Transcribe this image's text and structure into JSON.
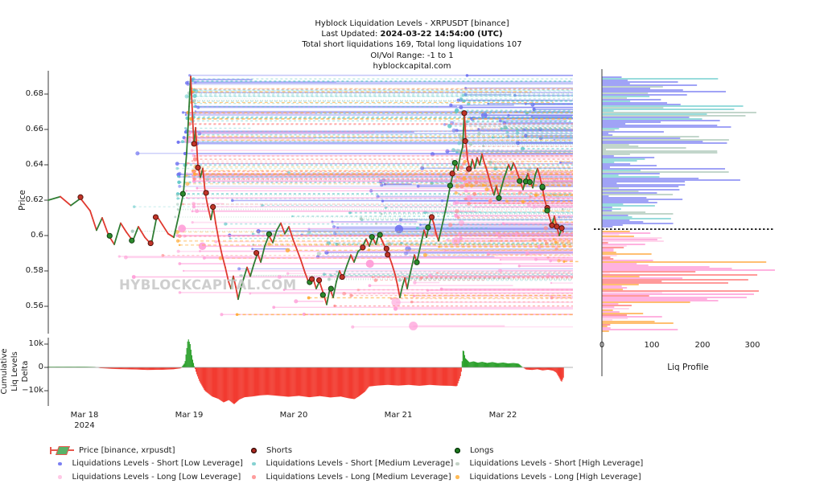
{
  "header": {
    "line1": "Hyblock Liquidation Levels - XRPUSDT [binance]",
    "line2_prefix": "Last Updated: ",
    "line2_bold": "2024-03-22 14:54:00 (UTC)",
    "line3": "Total short liquidations 169, Total long liquidations 107",
    "line4": "OI/Vol Range: -1 to 1",
    "line5": "hyblockcapital.com"
  },
  "watermark": "HYBLOCKCAPITAL.COM",
  "axes": {
    "price": {
      "title": "Price",
      "ticks": [
        "0.68",
        "0.66",
        "0.64",
        "0.62",
        "0.6",
        "0.58",
        "0.56"
      ]
    },
    "delta": {
      "title_lines": [
        "Cumulative",
        "Liq Levels",
        "Delta"
      ],
      "ticks": [
        "10k",
        "0",
        "−10k"
      ]
    },
    "dates": [
      "Mar 18",
      "Mar 19",
      "Mar 20",
      "Mar 21",
      "Mar 22"
    ],
    "year": "2024",
    "profile": {
      "title": "Liq Profile",
      "ticks": [
        "0",
        "100",
        "200",
        "300"
      ]
    }
  },
  "legend": {
    "items": [
      {
        "label": "Price [binance, xrpusdt]",
        "type": "price-icon"
      },
      {
        "label": "Shorts",
        "color": "#b02a22",
        "ring": "#2b0a06",
        "type": "big"
      },
      {
        "label": "Longs",
        "color": "#1e7a1e",
        "ring": "#07320a",
        "type": "big"
      },
      {
        "label": "Liquidations Levels - Short [Low Leverage]",
        "color": "#7b7ff2",
        "type": "small"
      },
      {
        "label": "Liquidations Levels - Short [Medium Leverage]",
        "color": "#86d2d2",
        "type": "small"
      },
      {
        "label": "Liquidations Levels - Short [High Leverage]",
        "color": "#c3d2c6",
        "type": "small"
      },
      {
        "label": "Liquidations Levels - Long [Low Leverage]",
        "color": "#ffc9e6",
        "type": "small"
      },
      {
        "label": "Liquidations Levels - Long [Medium Leverage]",
        "color": "#ff9d9d",
        "type": "small"
      },
      {
        "label": "Liquidations Levels - Long [High Leverage]",
        "color": "#ffbb55",
        "type": "small"
      }
    ]
  },
  "chart_data": {
    "type": "composite",
    "title": "Hyblock Liquidation Levels - XRPUSDT [binance]",
    "price_axis": {
      "label": "Price",
      "range": [
        0.545,
        0.693
      ],
      "ticks": [
        0.68,
        0.66,
        0.64,
        0.62,
        0.6,
        0.58,
        0.56
      ]
    },
    "time_axis": {
      "unit": "days since 2024-03-18 00:00 UTC",
      "tick_days": [
        0,
        1,
        2,
        3,
        4
      ],
      "tick_labels": [
        "Mar 18",
        "Mar 19",
        "Mar 20",
        "Mar 21",
        "Mar 22"
      ],
      "range_days": [
        -0.35,
        4.6
      ]
    },
    "price_series": {
      "name": "Price [binance, xrpusdt]",
      "up_color": "#2f7d33",
      "down_color": "#e0392f",
      "points": [
        [
          -0.346,
          0.62
        ],
        [
          -0.231,
          0.622
        ],
        [
          -0.131,
          0.617
        ],
        [
          -0.038,
          0.621
        ],
        [
          0.054,
          0.614
        ],
        [
          0.115,
          0.603
        ],
        [
          0.169,
          0.61
        ],
        [
          0.231,
          0.6
        ],
        [
          0.285,
          0.595
        ],
        [
          0.346,
          0.607
        ],
        [
          0.4,
          0.602
        ],
        [
          0.462,
          0.597
        ],
        [
          0.515,
          0.605
        ],
        [
          0.577,
          0.599
        ],
        [
          0.638,
          0.595
        ],
        [
          0.692,
          0.611
        ],
        [
          0.746,
          0.606
        ],
        [
          0.8,
          0.601
        ],
        [
          0.854,
          0.599
        ],
        [
          0.9,
          0.611
        ],
        [
          0.946,
          0.624
        ],
        [
          0.977,
          0.647
        ],
        [
          1.0,
          0.673
        ],
        [
          1.015,
          0.69
        ],
        [
          1.031,
          0.67
        ],
        [
          1.046,
          0.651
        ],
        [
          1.062,
          0.661
        ],
        [
          1.085,
          0.639
        ],
        [
          1.108,
          0.633
        ],
        [
          1.131,
          0.638
        ],
        [
          1.154,
          0.624
        ],
        [
          1.177,
          0.617
        ],
        [
          1.208,
          0.609
        ],
        [
          1.231,
          0.616
        ],
        [
          1.254,
          0.607
        ],
        [
          1.285,
          0.597
        ],
        [
          1.315,
          0.589
        ],
        [
          1.346,
          0.582
        ],
        [
          1.377,
          0.574
        ],
        [
          1.4,
          0.57
        ],
        [
          1.423,
          0.577
        ],
        [
          1.446,
          0.571
        ],
        [
          1.469,
          0.564
        ],
        [
          1.492,
          0.57
        ],
        [
          1.523,
          0.576
        ],
        [
          1.554,
          0.582
        ],
        [
          1.585,
          0.577
        ],
        [
          1.615,
          0.583
        ],
        [
          1.654,
          0.59
        ],
        [
          1.685,
          0.585
        ],
        [
          1.723,
          0.594
        ],
        [
          1.762,
          0.6
        ],
        [
          1.8,
          0.596
        ],
        [
          1.838,
          0.603
        ],
        [
          1.877,
          0.607
        ],
        [
          1.915,
          0.601
        ],
        [
          1.954,
          0.605
        ],
        [
          1.992,
          0.598
        ],
        [
          2.031,
          0.592
        ],
        [
          2.069,
          0.586
        ],
        [
          2.108,
          0.579
        ],
        [
          2.146,
          0.573
        ],
        [
          2.185,
          0.576
        ],
        [
          2.215,
          0.57
        ],
        [
          2.246,
          0.574
        ],
        [
          2.285,
          0.567
        ],
        [
          2.315,
          0.561
        ],
        [
          2.346,
          0.57
        ],
        [
          2.377,
          0.565
        ],
        [
          2.408,
          0.574
        ],
        [
          2.438,
          0.58
        ],
        [
          2.469,
          0.576
        ],
        [
          2.508,
          0.583
        ],
        [
          2.546,
          0.589
        ],
        [
          2.577,
          0.585
        ],
        [
          2.615,
          0.591
        ],
        [
          2.654,
          0.593
        ],
        [
          2.692,
          0.598
        ],
        [
          2.723,
          0.594
        ],
        [
          2.754,
          0.599
        ],
        [
          2.785,
          0.595
        ],
        [
          2.815,
          0.601
        ],
        [
          2.846,
          0.597
        ],
        [
          2.877,
          0.593
        ],
        [
          2.908,
          0.589
        ],
        [
          2.938,
          0.584
        ],
        [
          2.969,
          0.578
        ],
        [
          2.992,
          0.572
        ],
        [
          3.015,
          0.565
        ],
        [
          3.038,
          0.571
        ],
        [
          3.062,
          0.576
        ],
        [
          3.085,
          0.57
        ],
        [
          3.108,
          0.577
        ],
        [
          3.131,
          0.583
        ],
        [
          3.154,
          0.589
        ],
        [
          3.177,
          0.585
        ],
        [
          3.2,
          0.591
        ],
        [
          3.223,
          0.597
        ],
        [
          3.246,
          0.603
        ],
        [
          3.269,
          0.599
        ],
        [
          3.292,
          0.605
        ],
        [
          3.315,
          0.611
        ],
        [
          3.338,
          0.607
        ],
        [
          3.362,
          0.601
        ],
        [
          3.385,
          0.597
        ],
        [
          3.408,
          0.603
        ],
        [
          3.431,
          0.609
        ],
        [
          3.454,
          0.615
        ],
        [
          3.477,
          0.622
        ],
        [
          3.5,
          0.629
        ],
        [
          3.523,
          0.635
        ],
        [
          3.546,
          0.641
        ],
        [
          3.569,
          0.637
        ],
        [
          3.592,
          0.645
        ],
        [
          3.615,
          0.65
        ],
        [
          3.631,
          0.67
        ],
        [
          3.646,
          0.653
        ],
        [
          3.662,
          0.643
        ],
        [
          3.685,
          0.637
        ],
        [
          3.708,
          0.643
        ],
        [
          3.731,
          0.638
        ],
        [
          3.754,
          0.644
        ],
        [
          3.777,
          0.64
        ],
        [
          3.8,
          0.646
        ],
        [
          3.823,
          0.641
        ],
        [
          3.846,
          0.637
        ],
        [
          3.869,
          0.632
        ],
        [
          3.892,
          0.627
        ],
        [
          3.915,
          0.623
        ],
        [
          3.938,
          0.628
        ],
        [
          3.962,
          0.622
        ],
        [
          3.985,
          0.627
        ],
        [
          4.008,
          0.632
        ],
        [
          4.031,
          0.636
        ],
        [
          4.054,
          0.64
        ],
        [
          4.077,
          0.637
        ],
        [
          4.1,
          0.641
        ],
        [
          4.123,
          0.638
        ],
        [
          4.146,
          0.634
        ],
        [
          4.169,
          0.63
        ],
        [
          4.192,
          0.626
        ],
        [
          4.215,
          0.631
        ],
        [
          4.238,
          0.635
        ],
        [
          4.262,
          0.631
        ],
        [
          4.285,
          0.627
        ],
        [
          4.308,
          0.634
        ],
        [
          4.331,
          0.638
        ],
        [
          4.354,
          0.633
        ],
        [
          4.377,
          0.627
        ],
        [
          4.4,
          0.62
        ],
        [
          4.423,
          0.615
        ],
        [
          4.446,
          0.61
        ],
        [
          4.469,
          0.606
        ],
        [
          4.492,
          0.611
        ],
        [
          4.515,
          0.605
        ],
        [
          4.538,
          0.6
        ],
        [
          4.562,
          0.604
        ],
        [
          4.577,
          0.602
        ]
      ]
    },
    "markers": {
      "shorts_total_stat": 169,
      "longs_total_stat": 107,
      "density": 0.3,
      "seed": 77,
      "shorts_color": "#c13428",
      "shorts_ring": "#55140d",
      "longs_color": "#2c8a2c",
      "longs_ring": "#123f12"
    },
    "delta_series": {
      "ylabel": "Cumulative Liq Levels Delta",
      "units": "thousands",
      "pos_color": "#2ca02c",
      "neg_color": "#f23b30",
      "y_range": [
        -16.5,
        13
      ],
      "points": [
        [
          -0.35,
          0.3
        ],
        [
          0.0,
          0.3
        ],
        [
          0.1,
          0.2
        ],
        [
          0.15,
          -0.3
        ],
        [
          0.3,
          -0.7
        ],
        [
          0.5,
          -0.9
        ],
        [
          0.6,
          -1.1
        ],
        [
          0.75,
          -1.0
        ],
        [
          0.85,
          -0.8
        ],
        [
          0.92,
          -0.4
        ],
        [
          0.96,
          2.0
        ],
        [
          0.99,
          12.5
        ],
        [
          1.01,
          10.0
        ],
        [
          1.03,
          4.0
        ],
        [
          1.05,
          0.5
        ],
        [
          1.07,
          -2.5
        ],
        [
          1.1,
          -6.0
        ],
        [
          1.15,
          -10.0
        ],
        [
          1.22,
          -12.5
        ],
        [
          1.28,
          -13.5
        ],
        [
          1.33,
          -15.0
        ],
        [
          1.38,
          -14.0
        ],
        [
          1.43,
          -15.8
        ],
        [
          1.48,
          -13.8
        ],
        [
          1.53,
          -12.8
        ],
        [
          1.6,
          -12.5
        ],
        [
          1.68,
          -12.0
        ],
        [
          1.75,
          -11.8
        ],
        [
          1.85,
          -12.2
        ],
        [
          1.95,
          -12.6
        ],
        [
          2.05,
          -12.2
        ],
        [
          2.15,
          -12.8
        ],
        [
          2.25,
          -12.3
        ],
        [
          2.35,
          -12.9
        ],
        [
          2.45,
          -12.5
        ],
        [
          2.52,
          -13.2
        ],
        [
          2.58,
          -13.6
        ],
        [
          2.62,
          -12.5
        ],
        [
          2.68,
          -10.5
        ],
        [
          2.72,
          -8.2
        ],
        [
          2.8,
          -7.8
        ],
        [
          2.9,
          -7.5
        ],
        [
          3.0,
          -7.8
        ],
        [
          3.1,
          -7.5
        ],
        [
          3.2,
          -7.9
        ],
        [
          3.3,
          -7.5
        ],
        [
          3.4,
          -7.8
        ],
        [
          3.5,
          -7.9
        ],
        [
          3.56,
          -8.1
        ],
        [
          3.6,
          -3.0
        ],
        [
          3.62,
          8.3
        ],
        [
          3.64,
          4.0
        ],
        [
          3.68,
          2.2
        ],
        [
          3.72,
          2.6
        ],
        [
          3.76,
          2.0
        ],
        [
          3.8,
          2.4
        ],
        [
          3.85,
          1.9
        ],
        [
          3.9,
          2.3
        ],
        [
          3.95,
          1.8
        ],
        [
          4.0,
          2.1
        ],
        [
          4.05,
          1.7
        ],
        [
          4.1,
          1.9
        ],
        [
          4.15,
          1.6
        ],
        [
          4.18,
          0.4
        ],
        [
          4.22,
          -0.9
        ],
        [
          4.28,
          -1.1
        ],
        [
          4.33,
          -0.8
        ],
        [
          4.38,
          -1.3
        ],
        [
          4.43,
          -1.0
        ],
        [
          4.48,
          -1.4
        ],
        [
          4.51,
          -2.2
        ],
        [
          4.54,
          -4.5
        ],
        [
          4.56,
          -6.3
        ],
        [
          4.58,
          -4.2
        ]
      ]
    },
    "liq_levels": {
      "note": "horizontal liquidation level lines spawned from price; estimated generative model",
      "seed": 42,
      "spawn_bias": {
        "primary_spike": 0.3,
        "secondary_spike": 0.12,
        "late_skew": 0.6
      },
      "persist_fraction": 0.82,
      "groups": [
        {
          "name": "short-low",
          "color": "#6a6ff0",
          "count": 105,
          "off_min": 0.016,
          "off_max": 0.078,
          "dash": "",
          "big_dots": true
        },
        {
          "name": "short-medium",
          "color": "#5fc8c8",
          "count": 78,
          "off_min": 0.007,
          "off_max": 0.055,
          "dash": "3 3",
          "big_dots": false
        },
        {
          "name": "short-high",
          "color": "#a8cbbd",
          "count": 48,
          "off_min": 0.003,
          "off_max": 0.028,
          "dash": "1 2",
          "big_dots": false
        },
        {
          "name": "long-low",
          "color": "#ff9ed8",
          "count": 100,
          "off_min": -0.075,
          "off_max": -0.016,
          "dash": "",
          "big_dots": true
        },
        {
          "name": "long-medium",
          "color": "#ff8f8f",
          "count": 62,
          "off_min": -0.05,
          "off_max": -0.007,
          "dash": "3 3",
          "big_dots": false
        },
        {
          "name": "long-high",
          "color": "#ffaa33",
          "count": 50,
          "off_min": -0.03,
          "off_max": -0.003,
          "dash": "4 3",
          "big_dots": false
        }
      ]
    },
    "liq_profile": {
      "xlabel": "Liq Profile",
      "x_ticks": [
        0,
        100,
        200,
        300
      ],
      "x_range": [
        0,
        340
      ],
      "current_price": 0.6036,
      "current_price_line": "black dotted",
      "seed": 9,
      "above_segments": [
        {
          "p0": 0.662,
          "p1": 0.693,
          "var": 300
        },
        {
          "p0": 0.628,
          "p1": 0.662,
          "var": 260
        },
        {
          "p0": 0.604,
          "p1": 0.628,
          "var": 150
        }
      ],
      "below_segments": [
        {
          "p0": 0.596,
          "p1": 0.6035,
          "var": 140
        },
        {
          "p0": 0.586,
          "p1": 0.596,
          "var": 120
        },
        {
          "p0": 0.56,
          "p1": 0.586,
          "var": 330
        },
        {
          "p0": 0.545,
          "p1": 0.56,
          "var": 150
        }
      ],
      "boost_band": {
        "p0": 0.572,
        "p1": 0.584,
        "chance": 0.35,
        "min": 150,
        "extra": 180
      },
      "palette_above": [
        "#6a6ff0",
        "#6a6ff0",
        "#6a6ff0",
        "#5fc8c8",
        "#9fbfae"
      ],
      "palette_below": [
        "#ff8fd2",
        "#ff8fd2",
        "#ffc4e4",
        "#ffa12e",
        "#ff6b6b"
      ]
    },
    "layout_hints": {
      "grid": false,
      "legend_position": "bottom",
      "watermark": "HYBLOCKCAPITAL.COM"
    }
  }
}
